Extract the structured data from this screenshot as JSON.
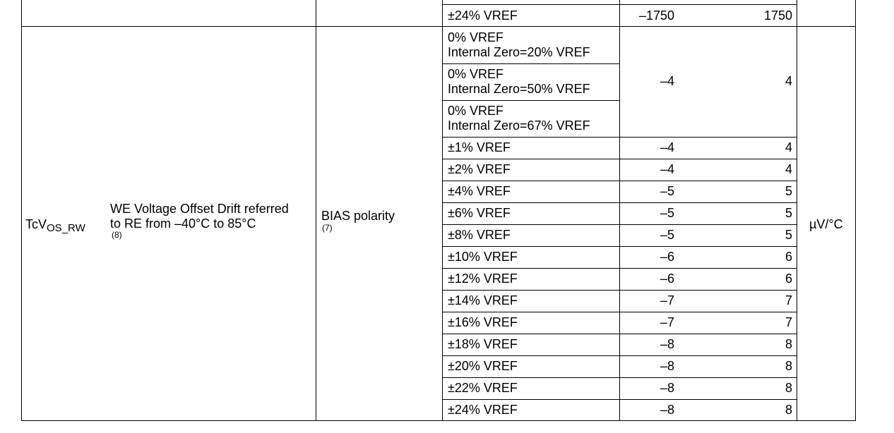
{
  "top_row": {
    "condition": "±24% VREF",
    "min": "–1750",
    "max": "1750"
  },
  "param": {
    "symbol_main": "TcV",
    "symbol_sub": "OS_RW",
    "description_line1": "WE Voltage Offset Drift referred",
    "description_line2": "to RE from –40°C to 85°C",
    "description_note": "(8)",
    "test_condition": "BIAS polarity",
    "test_note": "(7)",
    "unit": "µV/°C"
  },
  "zero_rows": [
    {
      "line1": "0% VREF",
      "line2": "Internal Zero=20% VREF"
    },
    {
      "line1": "0% VREF",
      "line2": "Internal Zero=50% VREF"
    },
    {
      "line1": "0% VREF",
      "line2": "Internal Zero=67% VREF"
    }
  ],
  "zero_min": "–4",
  "zero_max": "4",
  "rows": [
    {
      "cond": "±1% VREF",
      "min": "–4",
      "max": "4"
    },
    {
      "cond": "±2% VREF",
      "min": "–4",
      "max": "4"
    },
    {
      "cond": "±4% VREF",
      "min": "–5",
      "max": "5"
    },
    {
      "cond": "±6% VREF",
      "min": "–5",
      "max": "5"
    },
    {
      "cond": "±8% VREF",
      "min": "–5",
      "max": "5"
    },
    {
      "cond": "±10% VREF",
      "min": "–6",
      "max": "6"
    },
    {
      "cond": "±12% VREF",
      "min": "–6",
      "max": "6"
    },
    {
      "cond": "±14% VREF",
      "min": "–7",
      "max": "7"
    },
    {
      "cond": "±16% VREF",
      "min": "–7",
      "max": "7"
    },
    {
      "cond": "±18% VREF",
      "min": "–8",
      "max": "8"
    },
    {
      "cond": "±20% VREF",
      "min": "–8",
      "max": "8"
    },
    {
      "cond": "±22% VREF",
      "min": "–8",
      "max": "8"
    },
    {
      "cond": "±24% VREF",
      "min": "–8",
      "max": "8"
    }
  ]
}
